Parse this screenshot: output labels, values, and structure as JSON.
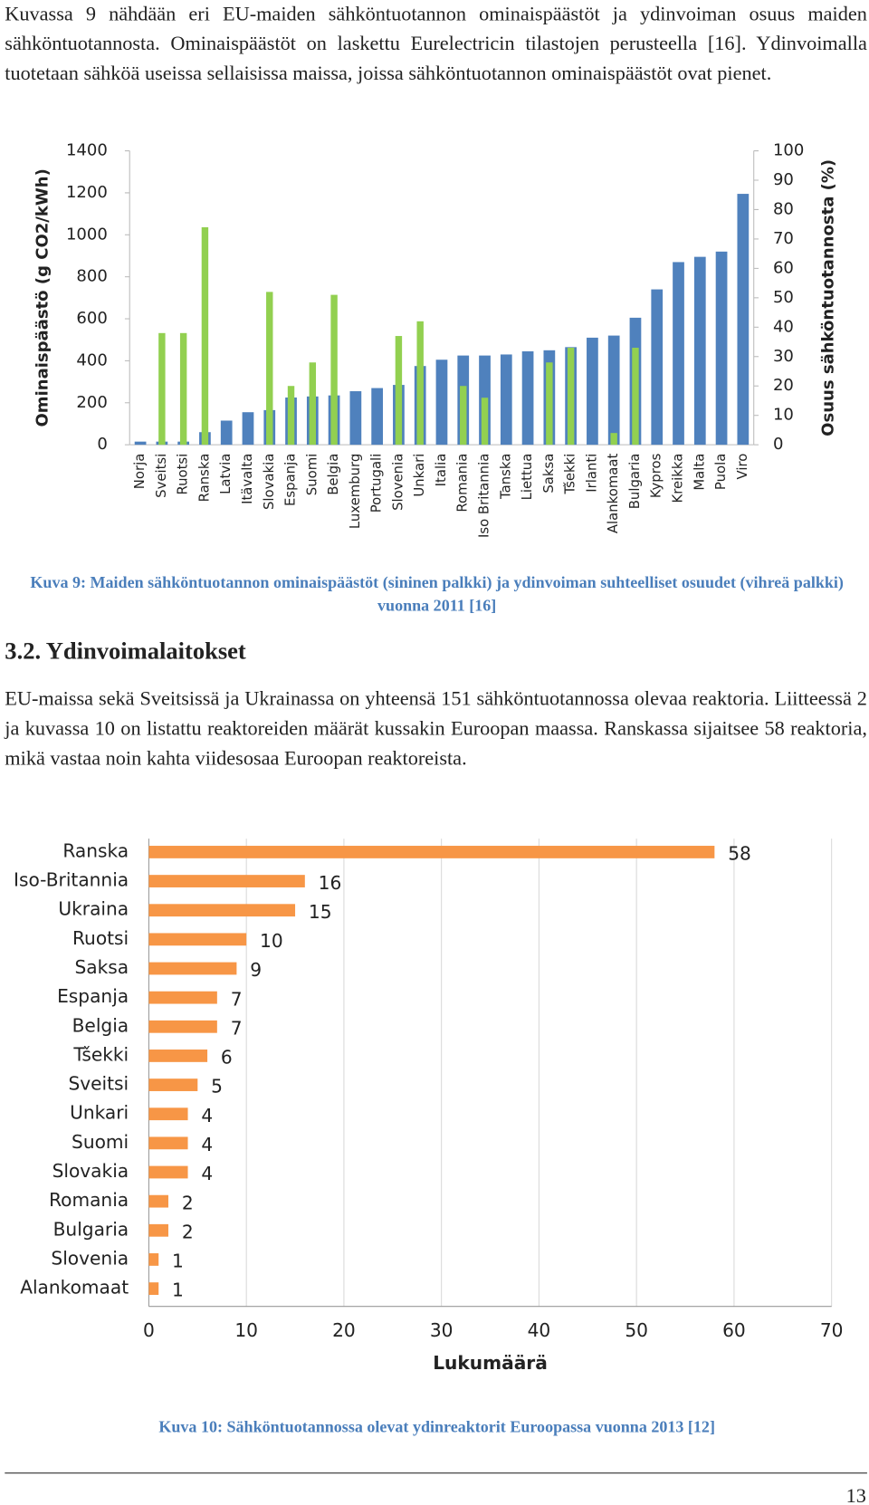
{
  "paragraphs": [
    "Kuvassa 9 nähdään eri EU-maiden sähköntuotannon ominaispäästöt ja ydinvoiman osuus maiden sähköntuotannosta. Ominaispäästöt on laskettu Eurelectricin tilastojen perusteella [16]. Ydinvoimalla tuotetaan sähköä useissa sellaisissa maissa, joissa sähköntuotannon ominaispäästöt ovat pienet.",
    "EU-maissa sekä Sveitsissä ja Ukrainassa on yhteensä 151 sähköntuotannossa olevaa reaktoria. Liitteessä 2 ja kuvassa 10 on listattu reaktoreiden määrät kussakin Euroopan maassa. Ranskassa sijaitsee 58 reaktoria, mikä vastaa noin kahta viidesosaa Euroopan reaktoreista."
  ],
  "heading": "3.2. Ydinvoimalaitokset",
  "captions": [
    "Kuva 9: Maiden sähköntuotannon ominaispäästöt (sininen palkki) ja ydinvoiman suhteelliset osuudet (vihreä palkki) vuonna 2011 [16]",
    "Kuva 10: Sähköntuotannossa olevat ydinreaktorit Euroopassa vuonna 2013 [12]"
  ],
  "page_number": "13",
  "chart_data": [
    {
      "type": "bar",
      "categories": [
        "Norja",
        "Sveitsi",
        "Ruotsi",
        "Ranska",
        "Latvia",
        "Itävalta",
        "Slovakia",
        "Espanja",
        "Suomi",
        "Belgia",
        "Luxemburg",
        "Portugali",
        "Slovenia",
        "Unkari",
        "Italia",
        "Romania",
        "Iso Britannia",
        "Tanska",
        "Liettua",
        "Saksa",
        "Tšekki",
        "Irlanti",
        "Alankomaat",
        "Bulgaria",
        "Kypros",
        "Kreikka",
        "Malta",
        "Puola",
        "Viro"
      ],
      "series": [
        {
          "color": "#4f81bd",
          "values": [
            15,
            15,
            15,
            60,
            115,
            155,
            165,
            225,
            230,
            235,
            255,
            270,
            285,
            375,
            405,
            425,
            425,
            430,
            445,
            450,
            465,
            510,
            520,
            605,
            740,
            870,
            895,
            920,
            1195
          ]
        },
        {
          "color": "#92d050",
          "axis": "y2",
          "values": [
            null,
            38,
            38,
            74,
            null,
            null,
            52,
            20,
            28,
            51,
            null,
            null,
            37,
            42,
            null,
            20,
            16,
            null,
            null,
            28,
            33,
            null,
            4,
            33,
            null,
            null,
            null,
            null,
            null
          ]
        }
      ],
      "ylabel": "Ominaispäästö (g CO2/kWh)",
      "y2label": "Osuus sähköntuotannosta (%)",
      "ylim": [
        0,
        1400
      ],
      "yticks": [
        0,
        200,
        400,
        600,
        800,
        1000,
        1200,
        1400
      ],
      "y2lim": [
        0,
        100
      ],
      "y2ticks": [
        0,
        10,
        20,
        30,
        40,
        50,
        60,
        70,
        80,
        90,
        100
      ]
    },
    {
      "type": "barh",
      "categories": [
        "Ranska",
        "Iso-Britannia",
        "Ukraina",
        "Ruotsi",
        "Saksa",
        "Espanja",
        "Belgia",
        "Tšekki",
        "Sveitsi",
        "Unkari",
        "Suomi",
        "Slovakia",
        "Romania",
        "Bulgaria",
        "Slovenia",
        "Alankomaat"
      ],
      "values": [
        58,
        16,
        15,
        10,
        9,
        7,
        7,
        6,
        5,
        4,
        4,
        4,
        2,
        2,
        1,
        1
      ],
      "color": "#f79646",
      "xlabel": "Lukumäärä",
      "xlim": [
        0,
        70
      ],
      "xticks": [
        0,
        10,
        20,
        30,
        40,
        50,
        60,
        70
      ],
      "grid": true
    }
  ]
}
